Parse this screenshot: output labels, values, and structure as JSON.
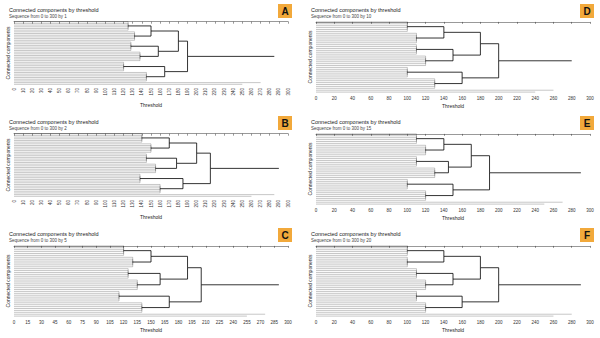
{
  "chart_data": [
    {
      "type": "dendrogram",
      "title": "Connected components by threshold",
      "subtitle": "Sequence from 0 to 300 by 1",
      "x_label": "Threshold",
      "y_label": "Connected components",
      "annotation": "A",
      "color": "#000000",
      "tick_labels": "x",
      "xlim": [
        0,
        300
      ],
      "xticks": [
        0,
        10,
        20,
        30,
        40,
        50,
        60,
        70,
        80,
        90,
        100,
        110,
        120,
        130,
        140,
        150,
        160,
        170,
        180,
        190,
        200,
        210,
        220,
        230,
        240,
        250,
        260,
        270,
        280,
        290,
        300
      ],
      "nodes": [
        [
          125,
          38
        ],
        [
          125,
          38
        ],
        [
          125,
          38
        ],
        [
          125,
          38
        ],
        [
          125,
          38
        ],
        [
          125,
          38
        ],
        [
          132,
          39
        ],
        [
          132,
          39
        ],
        [
          132,
          39
        ],
        [
          132,
          39
        ],
        [
          132,
          39
        ],
        [
          132,
          39
        ],
        [
          128,
          40
        ],
        [
          128,
          40
        ],
        [
          128,
          40
        ],
        [
          128,
          40
        ],
        [
          128,
          40
        ],
        [
          128,
          40
        ],
        [
          138,
          41
        ],
        [
          138,
          41
        ],
        [
          138,
          41
        ],
        [
          138,
          41
        ],
        [
          138,
          41
        ],
        [
          138,
          41
        ],
        [
          120,
          42
        ],
        [
          120,
          42
        ],
        [
          120,
          42
        ],
        [
          120,
          42
        ],
        [
          120,
          42
        ],
        [
          120,
          42
        ],
        [
          145,
          43
        ],
        [
          145,
          43
        ],
        [
          145,
          43
        ],
        [
          145,
          43
        ],
        [
          145,
          43
        ],
        [
          145,
          43
        ],
        [
          270,
          null
        ],
        [
          250,
          null
        ],
        [
          150,
          44
        ],
        [
          150,
          44
        ],
        [
          158,
          45
        ],
        [
          158,
          45
        ],
        [
          165,
          46
        ],
        [
          165,
          46
        ],
        [
          180,
          47
        ],
        [
          180,
          47
        ],
        [
          190,
          48
        ],
        [
          190,
          48
        ],
        [
          285,
          null
        ]
      ]
    },
    {
      "type": "dendrogram",
      "title": "Connected components by threshold",
      "subtitle": "Sequence from 0 to 300 by 2",
      "x_label": "Threshold",
      "y_label": "Connected components",
      "annotation": "B",
      "color": "#000000",
      "tick_labels": "x",
      "xlim": [
        0,
        300
      ],
      "xticks": [
        0,
        10,
        20,
        30,
        40,
        50,
        60,
        70,
        80,
        90,
        100,
        110,
        120,
        130,
        140,
        150,
        160,
        170,
        180,
        190,
        200,
        210,
        220,
        230,
        240,
        250,
        260,
        270,
        280,
        290,
        300
      ],
      "nodes": [
        [
          140,
          38
        ],
        [
          140,
          38
        ],
        [
          140,
          38
        ],
        [
          140,
          38
        ],
        [
          140,
          38
        ],
        [
          140,
          38
        ],
        [
          150,
          39
        ],
        [
          150,
          39
        ],
        [
          150,
          39
        ],
        [
          150,
          39
        ],
        [
          150,
          39
        ],
        [
          150,
          39
        ],
        [
          145,
          40
        ],
        [
          145,
          40
        ],
        [
          145,
          40
        ],
        [
          145,
          40
        ],
        [
          145,
          40
        ],
        [
          145,
          40
        ],
        [
          155,
          41
        ],
        [
          155,
          41
        ],
        [
          155,
          41
        ],
        [
          155,
          41
        ],
        [
          155,
          41
        ],
        [
          155,
          41
        ],
        [
          138,
          42
        ],
        [
          138,
          42
        ],
        [
          138,
          42
        ],
        [
          138,
          42
        ],
        [
          138,
          42
        ],
        [
          138,
          42
        ],
        [
          160,
          43
        ],
        [
          160,
          43
        ],
        [
          160,
          43
        ],
        [
          160,
          43
        ],
        [
          160,
          43
        ],
        [
          160,
          43
        ],
        [
          285,
          null
        ],
        [
          260,
          null
        ],
        [
          170,
          44
        ],
        [
          170,
          44
        ],
        [
          178,
          45
        ],
        [
          178,
          45
        ],
        [
          185,
          46
        ],
        [
          185,
          46
        ],
        [
          200,
          47
        ],
        [
          200,
          47
        ],
        [
          215,
          48
        ],
        [
          215,
          48
        ],
        [
          290,
          null
        ]
      ]
    },
    {
      "type": "dendrogram",
      "title": "Connected components by threshold",
      "subtitle": "Sequence from 0 to 300 by 5",
      "x_label": "Threshold",
      "y_label": "Connected components",
      "annotation": "C",
      "color": "#000000",
      "tick_labels": "x",
      "xlim": [
        0,
        300
      ],
      "xticks": [
        0,
        15,
        30,
        45,
        60,
        75,
        90,
        105,
        120,
        135,
        150,
        165,
        180,
        195,
        210,
        225,
        240,
        255,
        270,
        285,
        300
      ],
      "nodes": [
        [
          120,
          38
        ],
        [
          120,
          38
        ],
        [
          120,
          38
        ],
        [
          120,
          38
        ],
        [
          120,
          38
        ],
        [
          120,
          38
        ],
        [
          130,
          39
        ],
        [
          130,
          39
        ],
        [
          130,
          39
        ],
        [
          130,
          39
        ],
        [
          130,
          39
        ],
        [
          130,
          39
        ],
        [
          125,
          40
        ],
        [
          125,
          40
        ],
        [
          125,
          40
        ],
        [
          125,
          40
        ],
        [
          125,
          40
        ],
        [
          125,
          40
        ],
        [
          135,
          41
        ],
        [
          135,
          41
        ],
        [
          135,
          41
        ],
        [
          135,
          41
        ],
        [
          135,
          41
        ],
        [
          135,
          41
        ],
        [
          115,
          42
        ],
        [
          115,
          42
        ],
        [
          115,
          42
        ],
        [
          115,
          42
        ],
        [
          115,
          42
        ],
        [
          115,
          42
        ],
        [
          140,
          43
        ],
        [
          140,
          43
        ],
        [
          140,
          43
        ],
        [
          140,
          43
        ],
        [
          140,
          43
        ],
        [
          140,
          43
        ],
        [
          275,
          null
        ],
        [
          255,
          null
        ],
        [
          150,
          44
        ],
        [
          150,
          44
        ],
        [
          160,
          45
        ],
        [
          160,
          45
        ],
        [
          170,
          46
        ],
        [
          170,
          46
        ],
        [
          190,
          47
        ],
        [
          190,
          47
        ],
        [
          205,
          48
        ],
        [
          205,
          48
        ],
        [
          290,
          null
        ]
      ]
    },
    {
      "type": "dendrogram",
      "title": "Connected components by threshold",
      "subtitle": "Sequence from 0 to 300 by 10",
      "x_label": "Threshold",
      "y_label": "Connected components",
      "annotation": "D",
      "color": "#000000",
      "tick_labels": "x",
      "xlim": [
        0,
        300
      ],
      "xticks": [
        0,
        20,
        40,
        60,
        80,
        100,
        120,
        140,
        160,
        180,
        200,
        220,
        240,
        260,
        280,
        300
      ],
      "nodes": [
        [
          100,
          38
        ],
        [
          100,
          38
        ],
        [
          100,
          38
        ],
        [
          100,
          38
        ],
        [
          100,
          38
        ],
        [
          100,
          38
        ],
        [
          110,
          39
        ],
        [
          110,
          39
        ],
        [
          110,
          39
        ],
        [
          110,
          39
        ],
        [
          110,
          39
        ],
        [
          110,
          39
        ],
        [
          110,
          40
        ],
        [
          110,
          40
        ],
        [
          110,
          40
        ],
        [
          110,
          40
        ],
        [
          110,
          40
        ],
        [
          110,
          40
        ],
        [
          120,
          41
        ],
        [
          120,
          41
        ],
        [
          120,
          41
        ],
        [
          120,
          41
        ],
        [
          120,
          41
        ],
        [
          120,
          41
        ],
        [
          100,
          42
        ],
        [
          100,
          42
        ],
        [
          100,
          42
        ],
        [
          100,
          42
        ],
        [
          100,
          42
        ],
        [
          100,
          42
        ],
        [
          130,
          43
        ],
        [
          130,
          43
        ],
        [
          130,
          43
        ],
        [
          130,
          43
        ],
        [
          130,
          43
        ],
        [
          130,
          43
        ],
        [
          260,
          null
        ],
        [
          240,
          null
        ],
        [
          140,
          44
        ],
        [
          140,
          44
        ],
        [
          150,
          45
        ],
        [
          150,
          45
        ],
        [
          160,
          46
        ],
        [
          160,
          46
        ],
        [
          180,
          47
        ],
        [
          180,
          47
        ],
        [
          200,
          48
        ],
        [
          200,
          48
        ],
        [
          280,
          null
        ]
      ]
    },
    {
      "type": "dendrogram",
      "title": "Connected components by threshold",
      "subtitle": "Sequence from 0 to 300 by 15",
      "x_label": "Threshold",
      "y_label": "Connected components",
      "annotation": "E",
      "color": "#000000",
      "tick_labels": "x",
      "xlim": [
        0,
        300
      ],
      "xticks": [
        0,
        20,
        40,
        60,
        80,
        100,
        120,
        140,
        160,
        180,
        200,
        220,
        240,
        260,
        280,
        300
      ],
      "nodes": [
        [
          110,
          38
        ],
        [
          110,
          38
        ],
        [
          110,
          38
        ],
        [
          110,
          38
        ],
        [
          110,
          38
        ],
        [
          110,
          38
        ],
        [
          120,
          39
        ],
        [
          120,
          39
        ],
        [
          120,
          39
        ],
        [
          120,
          39
        ],
        [
          120,
          39
        ],
        [
          120,
          39
        ],
        [
          110,
          40
        ],
        [
          110,
          40
        ],
        [
          110,
          40
        ],
        [
          110,
          40
        ],
        [
          110,
          40
        ],
        [
          110,
          40
        ],
        [
          130,
          41
        ],
        [
          130,
          41
        ],
        [
          130,
          41
        ],
        [
          130,
          41
        ],
        [
          130,
          41
        ],
        [
          130,
          41
        ],
        [
          100,
          42
        ],
        [
          100,
          42
        ],
        [
          100,
          42
        ],
        [
          100,
          42
        ],
        [
          100,
          42
        ],
        [
          100,
          42
        ],
        [
          120,
          43
        ],
        [
          120,
          43
        ],
        [
          120,
          43
        ],
        [
          120,
          43
        ],
        [
          120,
          43
        ],
        [
          120,
          43
        ],
        [
          270,
          null
        ],
        [
          250,
          null
        ],
        [
          140,
          44
        ],
        [
          140,
          44
        ],
        [
          145,
          45
        ],
        [
          145,
          45
        ],
        [
          150,
          46
        ],
        [
          150,
          46
        ],
        [
          170,
          47
        ],
        [
          170,
          47
        ],
        [
          190,
          48
        ],
        [
          190,
          48
        ],
        [
          290,
          null
        ]
      ]
    },
    {
      "type": "dendrogram",
      "title": "Connected components by threshold",
      "subtitle": "Sequence from 0 to 300 by 20",
      "x_label": "Threshold",
      "y_label": "Connected components",
      "annotation": "F",
      "color": "#000000",
      "tick_labels": "x",
      "xlim": [
        0,
        300
      ],
      "xticks": [
        0,
        20,
        40,
        60,
        80,
        100,
        120,
        140,
        160,
        180,
        200,
        220,
        240,
        260,
        280,
        300
      ],
      "nodes": [
        [
          100,
          38
        ],
        [
          100,
          38
        ],
        [
          100,
          38
        ],
        [
          100,
          38
        ],
        [
          100,
          38
        ],
        [
          100,
          38
        ],
        [
          100,
          39
        ],
        [
          100,
          39
        ],
        [
          100,
          39
        ],
        [
          100,
          39
        ],
        [
          100,
          39
        ],
        [
          100,
          39
        ],
        [
          110,
          40
        ],
        [
          110,
          40
        ],
        [
          110,
          40
        ],
        [
          110,
          40
        ],
        [
          110,
          40
        ],
        [
          110,
          40
        ],
        [
          120,
          41
        ],
        [
          120,
          41
        ],
        [
          120,
          41
        ],
        [
          120,
          41
        ],
        [
          120,
          41
        ],
        [
          120,
          41
        ],
        [
          110,
          42
        ],
        [
          110,
          42
        ],
        [
          110,
          42
        ],
        [
          110,
          42
        ],
        [
          110,
          42
        ],
        [
          110,
          42
        ],
        [
          120,
          43
        ],
        [
          120,
          43
        ],
        [
          120,
          43
        ],
        [
          120,
          43
        ],
        [
          120,
          43
        ],
        [
          120,
          43
        ],
        [
          280,
          null
        ],
        [
          260,
          null
        ],
        [
          140,
          44
        ],
        [
          140,
          44
        ],
        [
          150,
          45
        ],
        [
          150,
          45
        ],
        [
          160,
          46
        ],
        [
          160,
          46
        ],
        [
          180,
          47
        ],
        [
          180,
          47
        ],
        [
          200,
          48
        ],
        [
          200,
          48
        ],
        [
          290,
          null
        ]
      ]
    }
  ]
}
